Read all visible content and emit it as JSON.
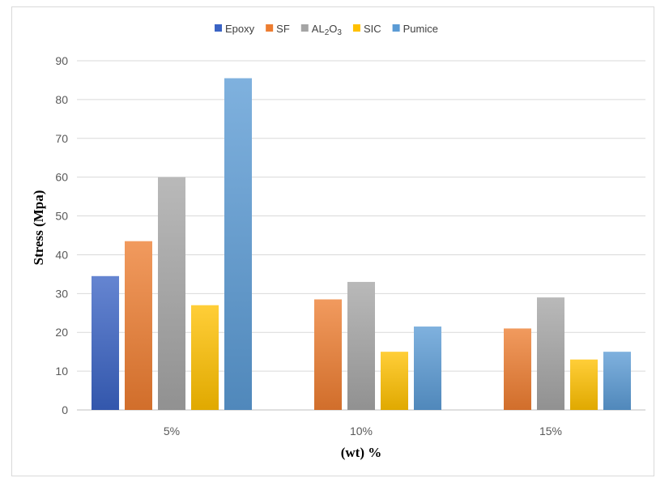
{
  "chart_data": {
    "type": "bar",
    "title": "",
    "xlabel": "(wt) %",
    "ylabel": "Stress (Mpa)",
    "ylim": [
      0,
      90
    ],
    "yticks": [
      0,
      10,
      20,
      30,
      40,
      50,
      60,
      70,
      80,
      90
    ],
    "grid": true,
    "legend_position": "top",
    "categories": [
      "5%",
      "10%",
      "15%"
    ],
    "series": [
      {
        "name": "Epoxy",
        "color": "#3a63c4",
        "values": [
          34.5,
          null,
          null
        ]
      },
      {
        "name": "SF",
        "color": "#ed7d31",
        "values": [
          43.5,
          28.5,
          21
        ]
      },
      {
        "name": "AL2O3",
        "color": "#a5a5a5",
        "values": [
          60,
          33,
          29
        ]
      },
      {
        "name": "SIC",
        "color": "#ffc000",
        "values": [
          27,
          15,
          13
        ]
      },
      {
        "name": "Pumice",
        "color": "#5b9bd5",
        "values": [
          85.5,
          21.5,
          15
        ]
      }
    ]
  }
}
